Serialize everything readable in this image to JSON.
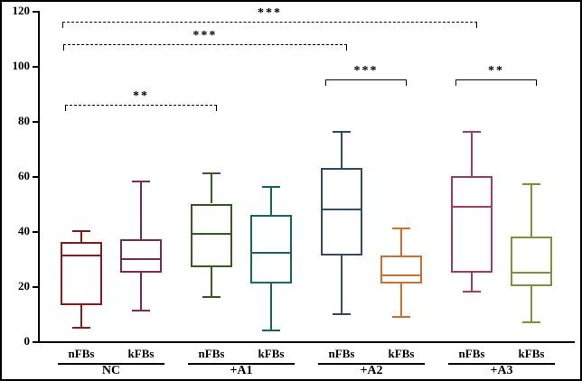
{
  "chart_data": {
    "type": "box",
    "title": "",
    "xlabel": "",
    "ylabel": "",
    "ylim": [
      0,
      120
    ],
    "yticks": [
      0,
      20,
      40,
      60,
      80,
      100,
      120
    ],
    "grid": false,
    "legend": "none",
    "axis_color": "#000000",
    "groups": [
      {
        "label": "NC",
        "boxes": [
          {
            "label": "nFBs",
            "color": "#8B1A1A",
            "whislo": 5,
            "q1": 13,
            "med": 31,
            "q3": 36,
            "whishi": 40
          },
          {
            "label": "kFBs",
            "color": "#7E2A52",
            "whislo": 11,
            "q1": 25,
            "med": 30,
            "q3": 37,
            "whishi": 58
          }
        ]
      },
      {
        "label": "+A1",
        "boxes": [
          {
            "label": "nFBs",
            "color": "#2F5F1E",
            "whislo": 16,
            "q1": 27,
            "med": 39,
            "q3": 50,
            "whishi": 61
          },
          {
            "label": "kFBs",
            "color": "#13695C",
            "whislo": 4,
            "q1": 21,
            "med": 32,
            "q3": 46,
            "whishi": 56
          }
        ]
      },
      {
        "label": "+A2",
        "boxes": [
          {
            "label": "nFBs",
            "color": "#2F4A63",
            "whislo": 10,
            "q1": 31,
            "med": 48,
            "q3": 63,
            "whishi": 76
          },
          {
            "label": "kFBs",
            "color": "#CE6F2C",
            "whislo": 9,
            "q1": 21,
            "med": 24,
            "q3": 31,
            "whishi": 41
          }
        ]
      },
      {
        "label": "+A3",
        "boxes": [
          {
            "label": "nFBs",
            "color": "#A13D63",
            "whislo": 18,
            "q1": 25,
            "med": 49,
            "q3": 60,
            "whishi": 76
          },
          {
            "label": "kFBs",
            "color": "#7C9334",
            "whislo": 7,
            "q1": 20,
            "med": 25,
            "q3": 38,
            "whishi": 57
          }
        ]
      }
    ],
    "brackets": [
      {
        "from_group": 0,
        "from_box": 0,
        "to_group": 1,
        "to_box": 0,
        "y": 86,
        "style": "dashed",
        "label": "**"
      },
      {
        "from_group": 0,
        "from_box": 0,
        "to_group": 2,
        "to_box": 0,
        "y": 108,
        "style": "dashed",
        "label": "***"
      },
      {
        "from_group": 0,
        "from_box": 0,
        "to_group": 3,
        "to_box": 0,
        "y": 116,
        "style": "dashed",
        "label": "***"
      },
      {
        "from_group": 2,
        "from_box": 0,
        "to_group": 2,
        "to_box": 1,
        "y": 95,
        "style": "solid",
        "label": "***"
      },
      {
        "from_group": 3,
        "from_box": 0,
        "to_group": 3,
        "to_box": 1,
        "y": 95,
        "style": "solid",
        "label": "**"
      }
    ]
  }
}
